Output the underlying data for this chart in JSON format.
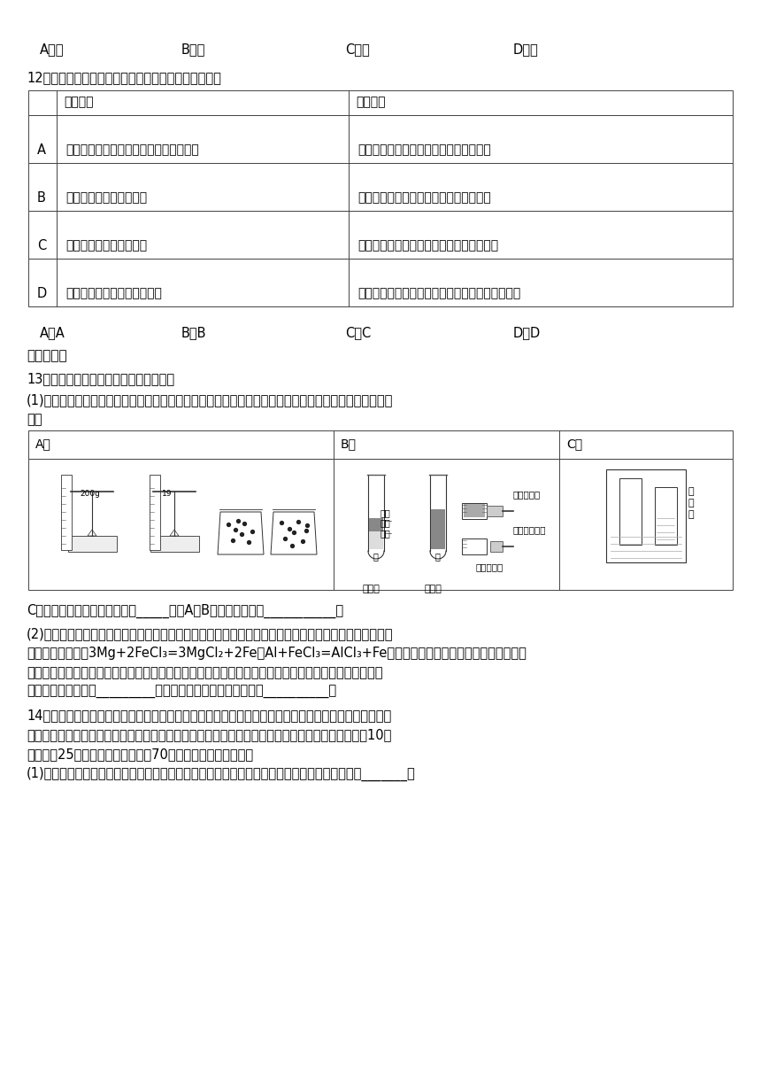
{
  "bg_color": "#ffffff",
  "text_color": "#000000",
  "line1_items": [
    [
      "A．银",
      45
    ],
    [
      "B．汞",
      205
    ],
    [
      "C．镁",
      390
    ],
    [
      "D．锌",
      580
    ]
  ],
  "q12": "12．依据实验目的，下列设计的实验方案中不合理的是",
  "table12_headers": [
    "",
    "实验目的",
    "实验方案"
  ],
  "table12_rows": [
    [
      "A",
      "检验氯化钙固体中是否含有少量的碳酸钙",
      "取样，滴加适量稀盐酸，观察是否冒气泡"
    ],
    [
      "B",
      "鉴别氯化铵和氯化钾固体",
      "分别与少量熟石灰混合后，研磨、闻气味"
    ],
    [
      "C",
      "比较铜和银的金属活动性",
      "把洁净的铜丝浸入硝酸银溶液中，观察现象"
    ],
    [
      "D",
      "除去烧碱溶液中少量的碳酸钠",
      "向溶液中滴加适量的氯化钙溶液，充分反应后过滤"
    ]
  ],
  "line_abcd_items": [
    [
      "A．A",
      45
    ],
    [
      "B．B",
      205
    ],
    [
      "C．C",
      390
    ],
    [
      "D．D",
      580
    ]
  ],
  "section2": "二、填空题",
  "q13": "13．分类和类比是学习化学的常用方法。",
  "q13_p1a": "(1)乐乐学习完分子的性质后，发现了许多有关分子性质的实验，于是将其整理在下表中让同组同学进行分",
  "q13_p1b": "类。",
  "table13_headers": [
    "A组",
    "B组",
    "C组"
  ],
  "q13_after": "C组说明的分子性质，应该归于_____（填A或B），归类依据是___________。",
  "q13_p2a": "(2)氯化铁与氯化亚铁都是很重要的铁的化合物。已知：在金属过量时，氯化铁也能与比铁活泼的金属发生",
  "q13_p2b": "置换反应。例如：3Mg+2FeCl₃=3MgCl₂+2Fe，Al+FeCl₃=AlCl₃+Fe经过类比分析，发现比铁活泼的金属与氯",
  "q13_p2c": "化铁发生的置换反应跟它们与氯化亚铁发生的置换反应有类似的规律。请仿照上述反应，试写出金属锌与",
  "q13_p2d": "氯化铁的反应方程式_________，恰好反应后溶液颜色的变化为__________。",
  "q14": "14．智轨电车在哈尔滨松北新区进行载客试跑。车底不见轨道，采用虚拟轨迹跟随技术、以全电驱动胶轮",
  "q14b": "取代钢轮车辆作为运载工具的新型轨道交通产品。车厢装有蓄能电池储存电量，并可进行快充，充电10分",
  "q14c": "钟可续航25公里，最高速度每小时70公里。试回答下列问题：",
  "q14_p1": "(1)为节约能源资源和资金，车体一般尽量使用轻质材料，下列材料中，最适合做该车体材料的是_______。"
}
